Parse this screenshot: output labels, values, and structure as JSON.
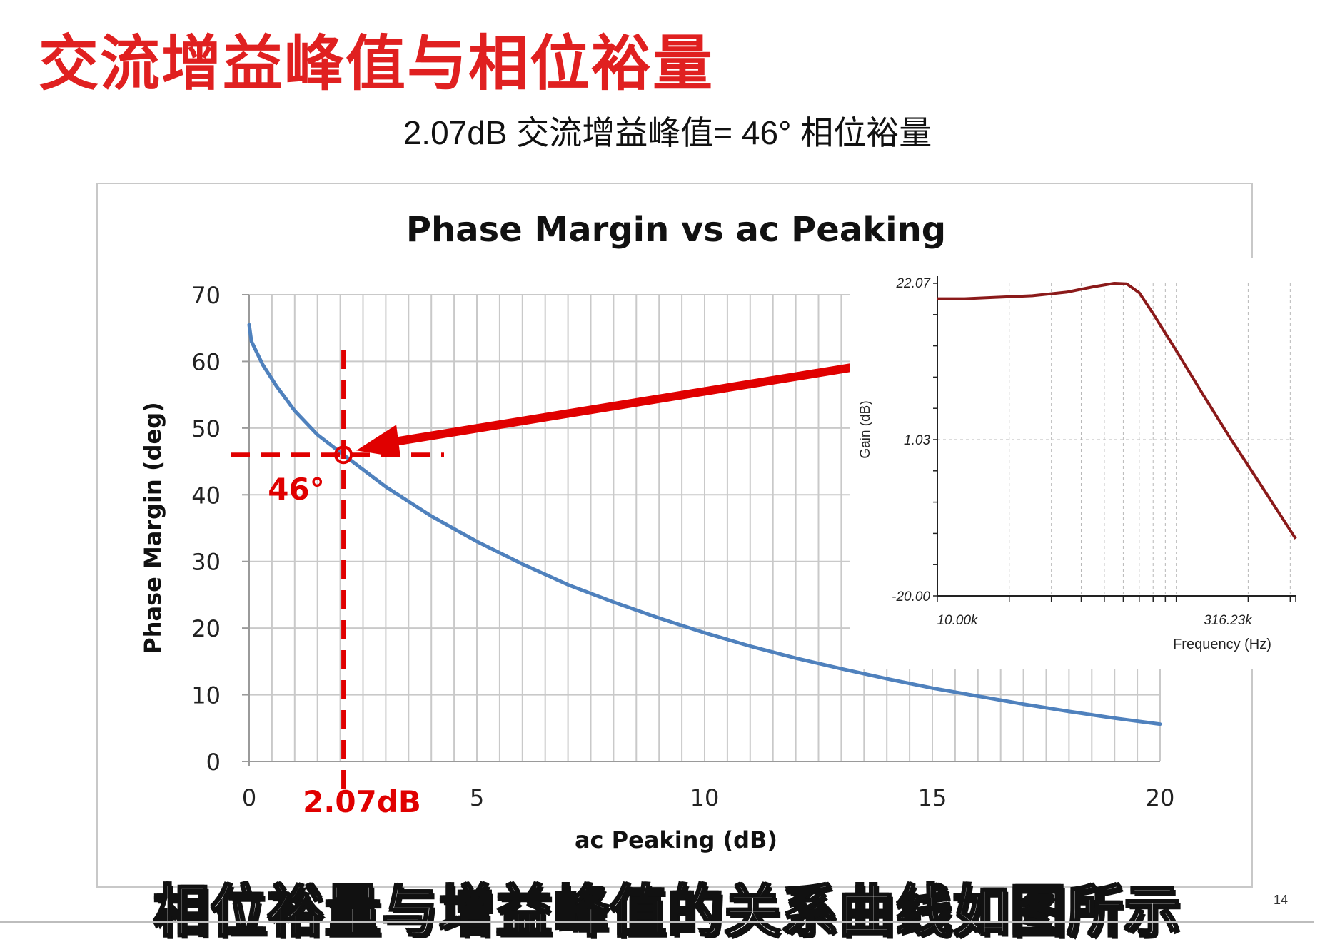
{
  "slide": {
    "title": "交流增益峰值与相位裕量",
    "subtitle": "2.07dB 交流增益峰值= 46° 相位裕量",
    "caption": "相位裕量与增益峰值的关系曲线如图所示",
    "page_number": "14"
  },
  "colors": {
    "title": "#e02020",
    "curve": "#4f81bd",
    "annotation": "#e00000",
    "inset_curve": "#8b1a1a",
    "grid": "#c9c9c9"
  },
  "chart_data": [
    {
      "type": "line",
      "title": "Phase Margin vs ac Peaking",
      "xlabel": "ac Peaking (dB)",
      "ylabel": "Phase Margin (deg)",
      "xlim": [
        0,
        20
      ],
      "ylim": [
        0,
        70
      ],
      "x_ticks": [
        "0",
        "5",
        "10",
        "15",
        "20"
      ],
      "y_ticks": [
        "0",
        "10",
        "20",
        "30",
        "40",
        "50",
        "60",
        "70"
      ],
      "grid": true,
      "series": [
        {
          "x": [
            0,
            0.05,
            0.3,
            0.6,
            1.0,
            1.5,
            2.07,
            3,
            4,
            5,
            6,
            7,
            8,
            9,
            10,
            11,
            12,
            13,
            14,
            15,
            16,
            17,
            18,
            19,
            20
          ],
          "y": [
            65.5,
            63.0,
            59.5,
            56.3,
            52.6,
            49.0,
            46.0,
            41.2,
            36.8,
            33.0,
            29.6,
            26.5,
            23.9,
            21.5,
            19.3,
            17.3,
            15.5,
            13.9,
            12.4,
            11.0,
            9.8,
            8.6,
            7.5,
            6.5,
            5.6
          ]
        }
      ],
      "annotations": {
        "point": {
          "x": 2.07,
          "y": 46
        },
        "y_label": "46°",
        "x_label": "2.07dB"
      }
    },
    {
      "type": "line",
      "xlabel": "Frequency (Hz)",
      "ylabel": "Gain (dB)",
      "x_scale": "log",
      "xlim": [
        10000,
        316230
      ],
      "ylim": [
        -20.0,
        22.07
      ],
      "y_tick_labels": [
        "22.07",
        "1.03",
        "-20.00"
      ],
      "x_tick_labels": [
        "10.00k",
        "316.23k"
      ],
      "grid": true,
      "series": [
        {
          "x": [
            10000,
            13000,
            18000,
            25000,
            35000,
            45000,
            55000,
            62000,
            70000,
            80000,
            100000,
            130000,
            170000,
            220000,
            316230
          ],
          "y": [
            20.0,
            20.0,
            20.2,
            20.4,
            20.9,
            21.6,
            22.07,
            22.0,
            20.8,
            18.0,
            13.0,
            7.0,
            1.0,
            -4.5,
            -12.3
          ]
        }
      ]
    }
  ]
}
